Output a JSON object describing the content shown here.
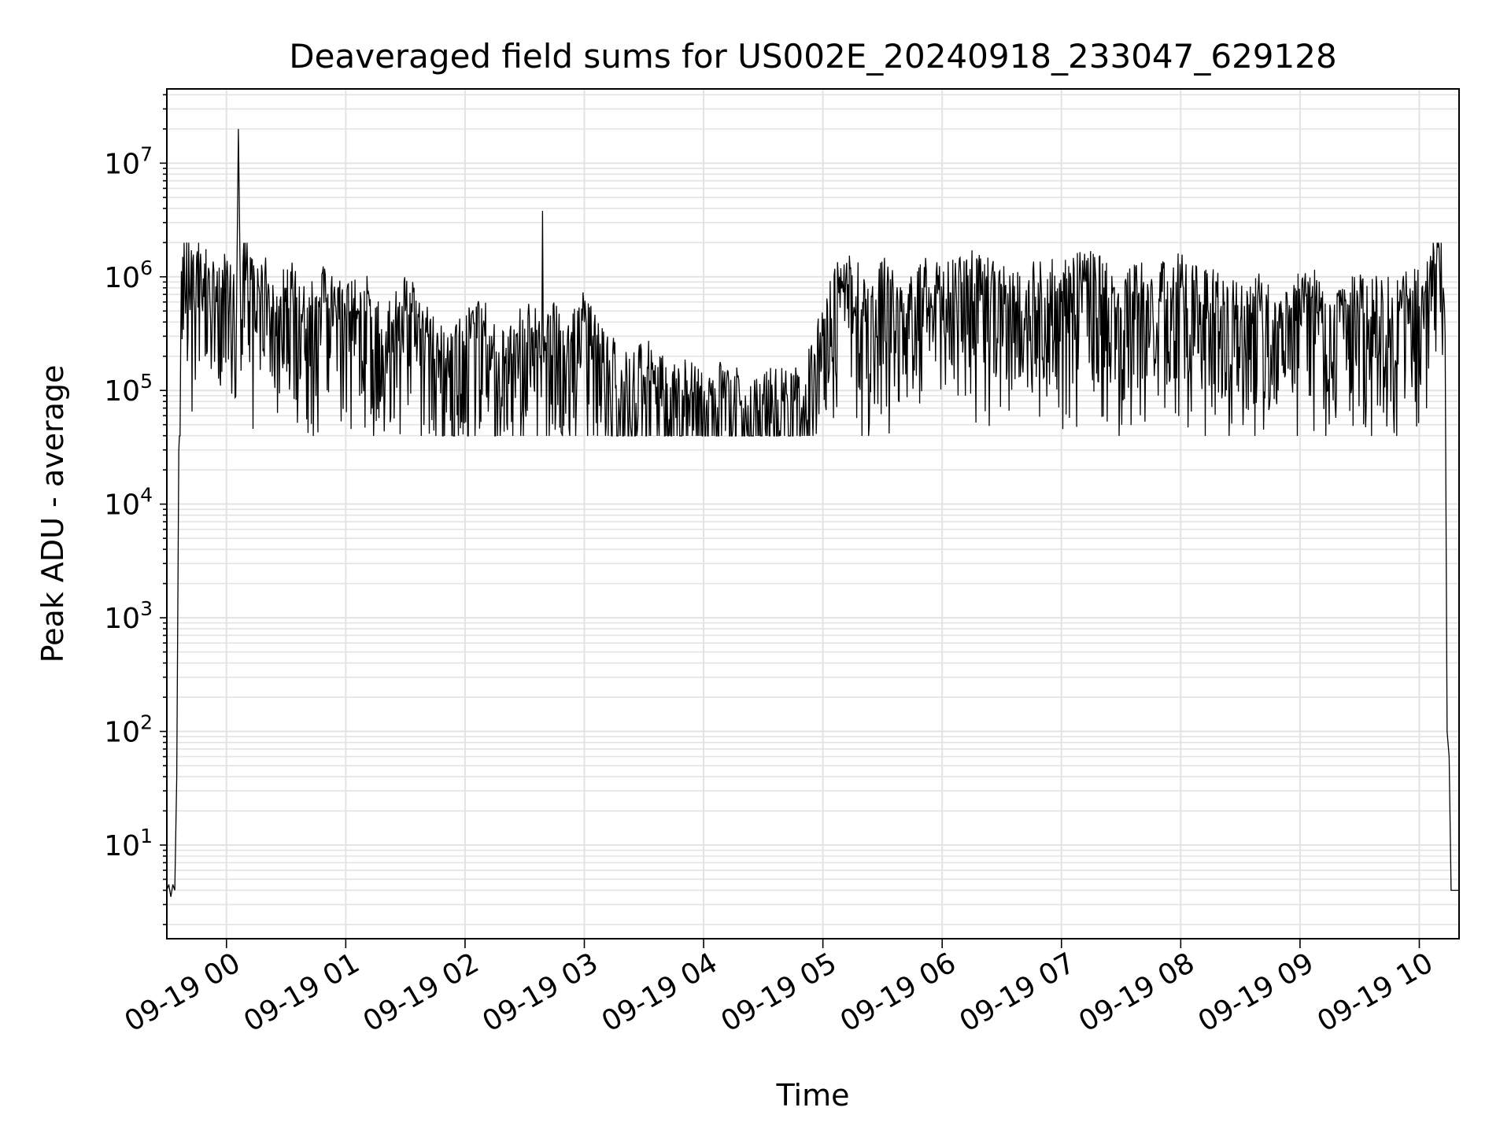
{
  "chart_data": {
    "type": "line",
    "title": "Deaveraged field sums for US002E_20240918_233047_629128",
    "xlabel": "Time",
    "ylabel": "Peak ADU - average",
    "yscale": "log",
    "ylim": [
      1.5,
      45000000
    ],
    "xlim": [
      "2024-09-18 23:30",
      "2024-09-19 10:20"
    ],
    "grid": true,
    "x_tick_labels": [
      "09-19 00",
      "09-19 01",
      "09-19 02",
      "09-19 03",
      "09-19 04",
      "09-19 05",
      "09-19 06",
      "09-19 07",
      "09-19 08",
      "09-19 09",
      "09-19 10"
    ],
    "y_ticks": [
      {
        "value": 10,
        "base": "10",
        "exp": "1"
      },
      {
        "value": 100,
        "base": "10",
        "exp": "2"
      },
      {
        "value": 1000,
        "base": "10",
        "exp": "3"
      },
      {
        "value": 10000,
        "base": "10",
        "exp": "4"
      },
      {
        "value": 100000,
        "base": "10",
        "exp": "5"
      },
      {
        "value": 1000000,
        "base": "10",
        "exp": "6"
      },
      {
        "value": 10000000,
        "base": "10",
        "exp": "7"
      }
    ],
    "series": [
      {
        "color": "#000000",
        "x": [
          "2024-09-18 23:30",
          "2024-09-18 23:31",
          "2024-09-18 23:32",
          "2024-09-18 23:33",
          "2024-09-18 23:34",
          "2024-09-18 23:35",
          "2024-09-18 23:36",
          "2024-09-18 23:37",
          "2024-09-18 23:38",
          "2024-09-18 23:40",
          "2024-09-18 23:42",
          "2024-09-18 23:45",
          "2024-09-18 23:48",
          "2024-09-18 23:51",
          "2024-09-18 23:55",
          "2024-09-19 00:00",
          "2024-09-19 00:05",
          "2024-09-19 00:06",
          "2024-09-19 00:07",
          "2024-09-19 00:10",
          "2024-09-19 00:15",
          "2024-09-19 00:20",
          "2024-09-19 00:25",
          "2024-09-19 00:30",
          "2024-09-19 00:40",
          "2024-09-19 00:50",
          "2024-09-19 01:00",
          "2024-09-19 01:10",
          "2024-09-19 01:20",
          "2024-09-19 01:30",
          "2024-09-19 01:40",
          "2024-09-19 01:50",
          "2024-09-19 02:00",
          "2024-09-19 02:10",
          "2024-09-19 02:20",
          "2024-09-19 02:30",
          "2024-09-19 02:38",
          "2024-09-19 02:39",
          "2024-09-19 02:40",
          "2024-09-19 02:50",
          "2024-09-19 03:00",
          "2024-09-19 03:10",
          "2024-09-19 03:20",
          "2024-09-19 03:30",
          "2024-09-19 03:40",
          "2024-09-19 03:50",
          "2024-09-19 04:00",
          "2024-09-19 04:10",
          "2024-09-19 04:20",
          "2024-09-19 04:30",
          "2024-09-19 04:40",
          "2024-09-19 04:50",
          "2024-09-19 05:00",
          "2024-09-19 05:10",
          "2024-09-19 05:20",
          "2024-09-19 05:30",
          "2024-09-19 05:40",
          "2024-09-19 05:50",
          "2024-09-19 06:00",
          "2024-09-19 06:10",
          "2024-09-19 06:20",
          "2024-09-19 06:30",
          "2024-09-19 06:40",
          "2024-09-19 06:50",
          "2024-09-19 07:00",
          "2024-09-19 07:10",
          "2024-09-19 07:20",
          "2024-09-19 07:30",
          "2024-09-19 07:40",
          "2024-09-19 07:50",
          "2024-09-19 08:00",
          "2024-09-19 08:10",
          "2024-09-19 08:20",
          "2024-09-19 08:30",
          "2024-09-19 08:40",
          "2024-09-19 08:50",
          "2024-09-19 09:00",
          "2024-09-19 09:10",
          "2024-09-19 09:20",
          "2024-09-19 09:30",
          "2024-09-19 09:40",
          "2024-09-19 09:50",
          "2024-09-19 10:00",
          "2024-09-19 10:05",
          "2024-09-19 10:08",
          "2024-09-19 10:10",
          "2024-09-19 10:12",
          "2024-09-19 10:13",
          "2024-09-19 10:14",
          "2024-09-19 10:15",
          "2024-09-19 10:16",
          "2024-09-19 10:18",
          "2024-09-19 10:20"
        ],
        "values": [
          4,
          4.5,
          3.5,
          4.5,
          4,
          40,
          30000,
          300000,
          1500000,
          2000000,
          900000,
          1500000,
          500000,
          1200000,
          600000,
          1100000,
          400000,
          20000000,
          700000,
          1200000,
          500000,
          900000,
          300000,
          800000,
          350000,
          600000,
          400000,
          500000,
          250000,
          500000,
          300000,
          150000,
          250000,
          300000,
          200000,
          350000,
          200000,
          3800000,
          300000,
          250000,
          400000,
          150000,
          120000,
          130000,
          100000,
          90000,
          80000,
          85000,
          70000,
          75000,
          80000,
          70000,
          300000,
          800000,
          600000,
          700000,
          400000,
          800000,
          600000,
          900000,
          700000,
          800000,
          500000,
          700000,
          600000,
          800000,
          700000,
          500000,
          700000,
          600000,
          800000,
          600000,
          500000,
          400000,
          500000,
          350000,
          600000,
          500000,
          400000,
          500000,
          450000,
          500000,
          550000,
          700000,
          1300000,
          1800000,
          800000,
          300000,
          100,
          60,
          4,
          4,
          4
        ]
      }
    ]
  }
}
